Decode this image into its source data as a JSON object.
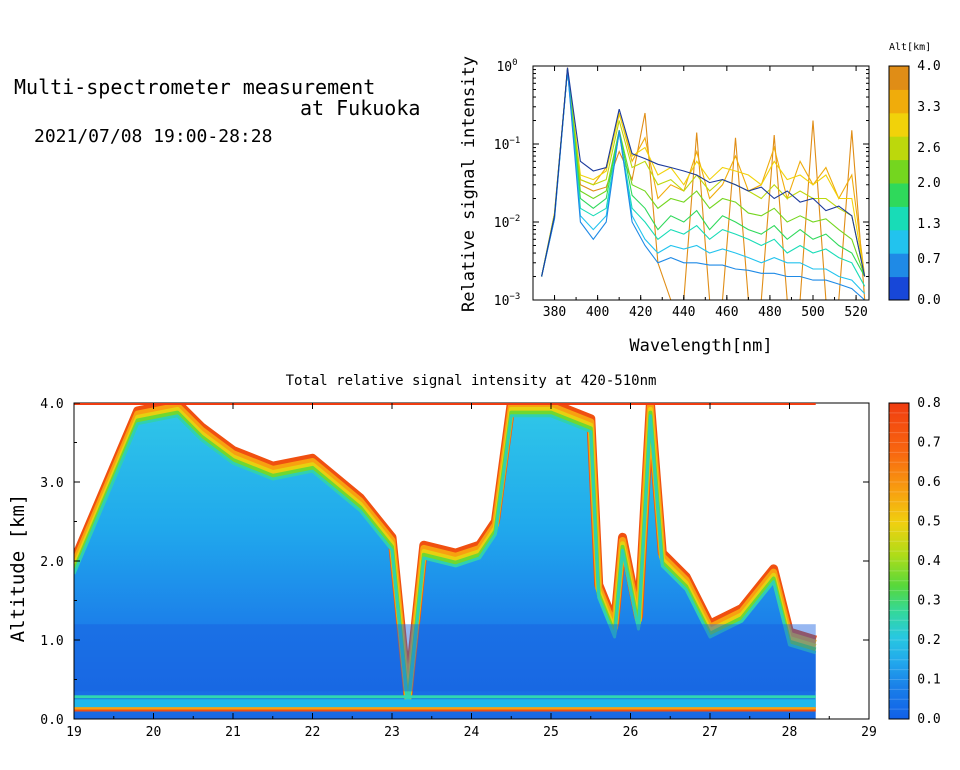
{
  "header": {
    "title_line1": "Multi-spectrometer measurement",
    "title_line2": "at Fukuoka",
    "subtitle": "2021/07/08 19:00-28:28"
  },
  "colors": {
    "spectrum_altitude_colors": [
      "#1747d8",
      "#1f8ae6",
      "#22c3ee",
      "#18dcb7",
      "#2fd95b",
      "#74d61f",
      "#bcd80c",
      "#f1d20a",
      "#f0ac0b",
      "#e08d16"
    ],
    "colorbar_scale": [
      "#1050e8",
      "#1e78ea",
      "#2aa0ec",
      "#34c4ea",
      "#2adac0",
      "#30d878",
      "#58da30",
      "#a0dc18",
      "#dcd812",
      "#f4c010",
      "#f89a10",
      "#f86c10",
      "#f03c10"
    ]
  },
  "chart_data": [
    {
      "type": "line",
      "title": "",
      "xlabel": "Wavelength[nm]",
      "ylabel": "Relative signal intensity",
      "xlim": [
        370,
        526
      ],
      "ylim": [
        0.001,
        1
      ],
      "yscale": "log",
      "xticks": [
        "380",
        "400",
        "420",
        "440",
        "460",
        "480",
        "500",
        "520"
      ],
      "yticks": [
        {
          "base": "10",
          "exp": "0"
        },
        {
          "base": "10",
          "exp": "−1"
        },
        {
          "base": "10",
          "exp": "−2"
        },
        {
          "base": "10",
          "exp": "−3"
        }
      ],
      "colorbar": {
        "label": "Alt[km]",
        "range": [
          0.0,
          4.0
        ],
        "ticks": [
          "4.0",
          "3.3",
          "2.6",
          "2.0",
          "1.3",
          "0.7",
          "0.0"
        ]
      },
      "x": [
        374,
        380,
        386,
        392,
        398,
        404,
        410,
        416,
        422,
        428,
        434,
        440,
        446,
        452,
        458,
        464,
        470,
        476,
        482,
        488,
        494,
        500,
        506,
        512,
        518,
        524
      ],
      "series": [
        {
          "values": [
            0.002,
            0.012,
            0.95,
            0.03,
            0.025,
            0.028,
            0.08,
            0.035,
            0.25,
            0.003,
            0.001,
            0.001,
            0.14,
            0.001,
            0.001,
            0.12,
            0.001,
            0.001,
            0.13,
            0.001,
            0.001,
            0.2,
            0.001,
            0.001,
            0.15,
            0.001
          ]
        },
        {
          "values": [
            0.002,
            0.013,
            0.9,
            0.035,
            0.03,
            0.05,
            0.25,
            0.06,
            0.12,
            0.02,
            0.03,
            0.025,
            0.08,
            0.02,
            0.03,
            0.07,
            0.025,
            0.03,
            0.09,
            0.02,
            0.06,
            0.03,
            0.05,
            0.02,
            0.04,
            0.002
          ]
        },
        {
          "values": [
            0.002,
            0.013,
            0.9,
            0.04,
            0.035,
            0.045,
            0.24,
            0.07,
            0.09,
            0.04,
            0.05,
            0.03,
            0.06,
            0.035,
            0.05,
            0.045,
            0.04,
            0.03,
            0.06,
            0.035,
            0.04,
            0.03,
            0.04,
            0.02,
            0.02,
            0.002
          ]
        },
        {
          "values": [
            0.002,
            0.012,
            0.9,
            0.035,
            0.03,
            0.035,
            0.2,
            0.05,
            0.06,
            0.03,
            0.035,
            0.025,
            0.04,
            0.025,
            0.035,
            0.03,
            0.025,
            0.02,
            0.03,
            0.02,
            0.025,
            0.02,
            0.02,
            0.015,
            0.012,
            0.002
          ]
        },
        {
          "values": [
            0.002,
            0.012,
            0.9,
            0.025,
            0.02,
            0.025,
            0.15,
            0.03,
            0.025,
            0.015,
            0.02,
            0.018,
            0.025,
            0.015,
            0.02,
            0.018,
            0.013,
            0.012,
            0.015,
            0.01,
            0.012,
            0.01,
            0.011,
            0.008,
            0.006,
            0.002
          ]
        },
        {
          "values": [
            0.002,
            0.012,
            0.9,
            0.02,
            0.015,
            0.02,
            0.15,
            0.022,
            0.015,
            0.008,
            0.012,
            0.01,
            0.014,
            0.008,
            0.012,
            0.01,
            0.008,
            0.007,
            0.009,
            0.006,
            0.008,
            0.006,
            0.007,
            0.005,
            0.004,
            0.002
          ]
        },
        {
          "values": [
            0.002,
            0.012,
            0.9,
            0.015,
            0.012,
            0.015,
            0.14,
            0.015,
            0.01,
            0.006,
            0.008,
            0.007,
            0.009,
            0.006,
            0.008,
            0.007,
            0.006,
            0.005,
            0.006,
            0.004,
            0.005,
            0.004,
            0.0045,
            0.0035,
            0.003,
            0.0015
          ]
        },
        {
          "values": [
            0.002,
            0.011,
            0.9,
            0.012,
            0.008,
            0.012,
            0.14,
            0.012,
            0.006,
            0.004,
            0.005,
            0.0045,
            0.005,
            0.004,
            0.0045,
            0.004,
            0.0035,
            0.003,
            0.0035,
            0.003,
            0.003,
            0.0025,
            0.0025,
            0.002,
            0.0018,
            0.0012
          ]
        },
        {
          "values": [
            0.002,
            0.011,
            0.9,
            0.01,
            0.006,
            0.01,
            0.15,
            0.01,
            0.005,
            0.003,
            0.0035,
            0.003,
            0.003,
            0.0028,
            0.0028,
            0.0025,
            0.0024,
            0.0022,
            0.0022,
            0.002,
            0.002,
            0.0018,
            0.0018,
            0.0016,
            0.0014,
            0.001
          ]
        },
        {
          "values": [
            0.002,
            0.012,
            0.95,
            0.06,
            0.045,
            0.05,
            0.28,
            0.075,
            0.065,
            0.055,
            0.05,
            0.045,
            0.04,
            0.032,
            0.035,
            0.03,
            0.025,
            0.028,
            0.02,
            0.025,
            0.018,
            0.02,
            0.014,
            0.016,
            0.012,
            0.002
          ]
        }
      ]
    },
    {
      "type": "heatmap",
      "title": "Total relative signal intensity at 420-510nm",
      "xlabel": "",
      "ylabel": "Altitude [km]",
      "xlim": [
        19,
        29
      ],
      "ylim": [
        0.0,
        4.0
      ],
      "xticks": [
        "19",
        "20",
        "21",
        "22",
        "23",
        "24",
        "25",
        "26",
        "27",
        "28",
        "29"
      ],
      "yticks": [
        "4.0",
        "3.0",
        "2.0",
        "1.0",
        "0.0"
      ],
      "colorbar": {
        "range": [
          0.0,
          0.8
        ],
        "ticks": [
          "0.8",
          "0.7",
          "0.6",
          "0.5",
          "0.4",
          "0.3",
          "0.2",
          "0.1",
          "0.0"
        ]
      },
      "data_end_hour": 28.33,
      "top_boundary": {
        "hours": [
          19.0,
          19.8,
          20.3,
          20.6,
          21.0,
          21.5,
          22.0,
          22.6,
          23.0,
          23.2,
          23.4,
          23.8,
          24.1,
          24.3,
          24.5,
          25.0,
          25.5,
          25.6,
          25.8,
          25.9,
          26.1,
          26.25,
          26.4,
          26.7,
          27.0,
          27.4,
          27.8,
          28.0,
          28.33
        ],
        "altitude_km": [
          2.0,
          3.9,
          4.0,
          3.7,
          3.4,
          3.2,
          3.3,
          2.8,
          2.3,
          0.3,
          2.2,
          2.1,
          2.2,
          2.5,
          4.0,
          4.0,
          3.8,
          1.7,
          1.2,
          2.3,
          1.3,
          4.0,
          2.1,
          1.8,
          1.2,
          1.4,
          1.9,
          1.1,
          1.0
        ]
      }
    }
  ]
}
